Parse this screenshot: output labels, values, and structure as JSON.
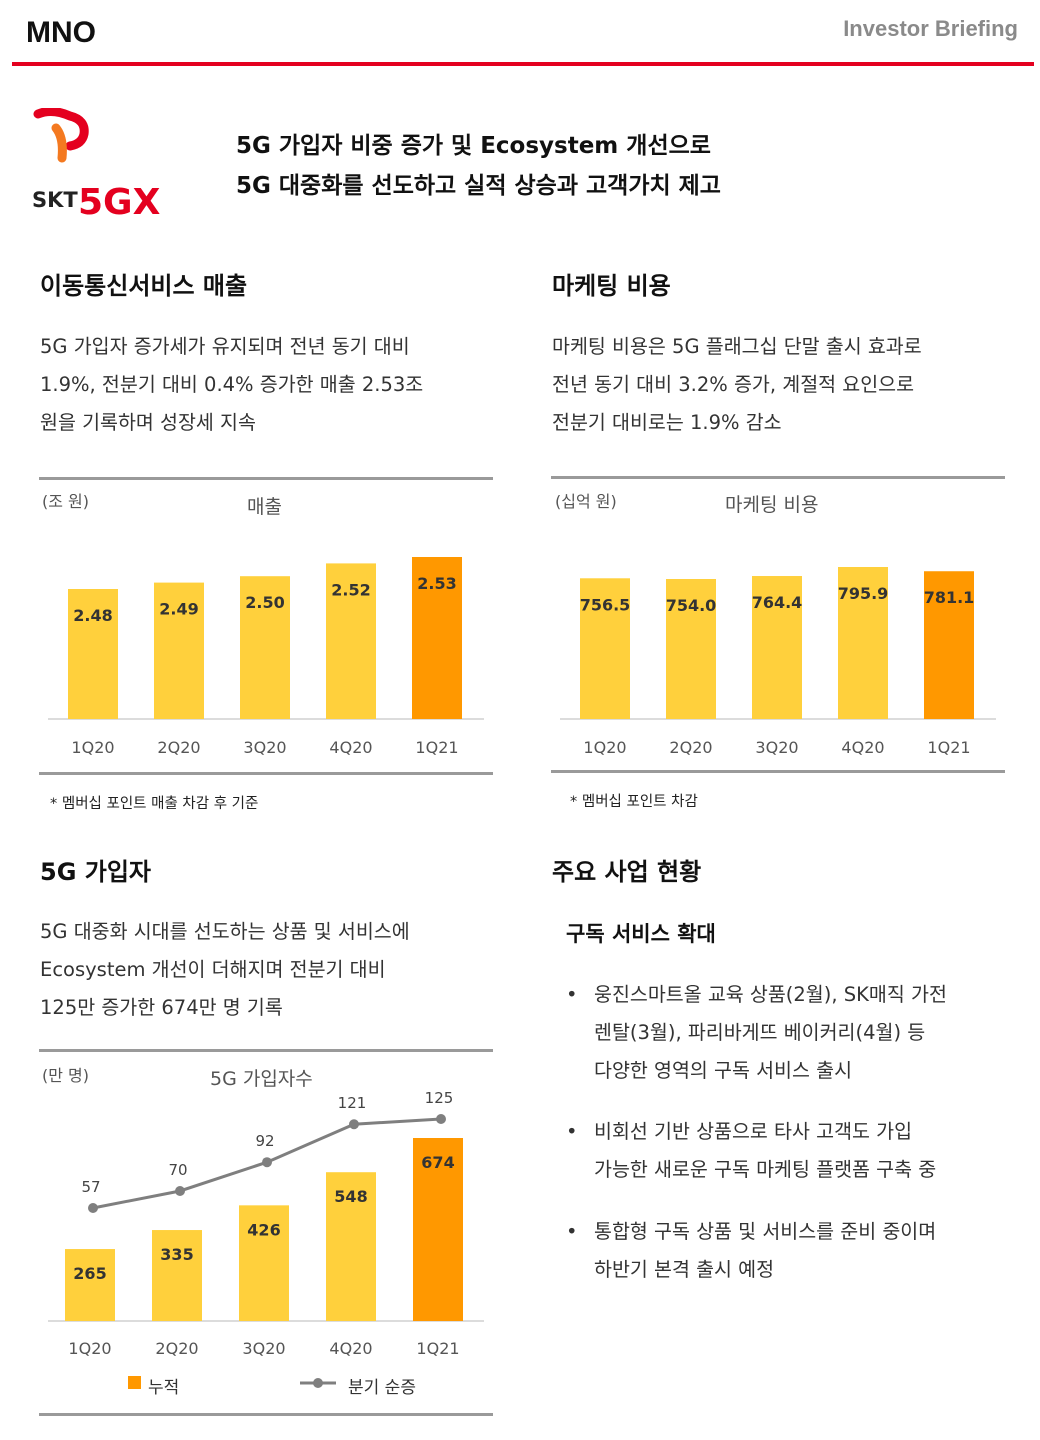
{
  "header": {
    "title": "MNO",
    "right": "Investor Briefing"
  },
  "logo": {
    "brand": "SKT",
    "product": "5GX"
  },
  "headline": {
    "line1": "5G 가입자 비중 증가 및 Ecosystem 개선으로",
    "line2": "5G 대중화를 선도하고 실적 상승과 고객가치 제고"
  },
  "colors": {
    "accent_red": "#e4001f",
    "bar_yellow": "#ffd03c",
    "bar_orange": "#ff9800",
    "line_gray": "#7f7f7f"
  },
  "revenue": {
    "title": "이동통신서비스 매출",
    "desc": [
      "5G 가입자 증가세가 유지되며 전년 동기 대비",
      "1.9%, 전분기 대비 0.4% 증가한 매출 2.53조",
      "원을 기록하며 성장세 지속"
    ],
    "unit": "(조 원)",
    "chart_title": "매출",
    "note": "* 멤버십 포인트 매출 차감 후 기준"
  },
  "marketing": {
    "title": "마케팅 비용",
    "desc": [
      "마케팅 비용은 5G 플래그십 단말 출시 효과로",
      "전년 동기 대비 3.2% 증가, 계절적 요인으로",
      "전분기 대비로는 1.9% 감소"
    ],
    "unit": "(십억 원)",
    "chart_title": "마케팅 비용",
    "note": "* 멤버십 포인트 차감"
  },
  "subscribers": {
    "title": "5G 가입자",
    "desc": [
      "5G 대중화 시대를 선도하는 상품 및 서비스에",
      "Ecosystem 개선이 더해지며 전분기 대비",
      "125만 증가한 674만 명 기록"
    ],
    "unit": "(만 명)",
    "chart_title": "5G 가입자수",
    "legend_bar": "누적",
    "legend_line": "분기 순증"
  },
  "business": {
    "title": "주요 사업 현황",
    "subtitle": "구독 서비스 확대",
    "bullets": [
      [
        "웅진스마트올 교육 상품(2월), SK매직 가전",
        "렌탈(3월), 파리바게뜨 베이커리(4월) 등",
        "다양한 영역의 구독 서비스 출시"
      ],
      [
        "비회선 기반 상품으로 타사 고객도 가입",
        "가능한 새로운 구독 마케팅 플랫폼 구축 중"
      ],
      [
        "통합형 구독 상품 및 서비스를 준비 중이며",
        "하반기 본격 출시 예정"
      ]
    ]
  },
  "chart_data": [
    {
      "type": "bar",
      "title": "매출",
      "ylabel": "(조 원)",
      "categories": [
        "1Q20",
        "2Q20",
        "3Q20",
        "4Q20",
        "1Q21"
      ],
      "values": [
        2.48,
        2.49,
        2.5,
        2.52,
        2.53
      ],
      "labels": [
        "2.48",
        "2.49",
        "2.50",
        "2.52",
        "2.53"
      ],
      "highlight_last": true
    },
    {
      "type": "bar",
      "title": "마케팅 비용",
      "ylabel": "(십억 원)",
      "categories": [
        "1Q20",
        "2Q20",
        "3Q20",
        "4Q20",
        "1Q21"
      ],
      "values": [
        756.5,
        754.0,
        764.4,
        795.9,
        781.1
      ],
      "labels": [
        "756.5",
        "754.0",
        "764.4",
        "795.9",
        "781.1"
      ],
      "highlight_last": true
    },
    {
      "type": "bar",
      "title": "5G 가입자수",
      "ylabel": "(만 명)",
      "categories": [
        "1Q20",
        "2Q20",
        "3Q20",
        "4Q20",
        "1Q21"
      ],
      "series": [
        {
          "name": "누적",
          "type": "bar",
          "values": [
            265,
            335,
            426,
            548,
            674
          ]
        },
        {
          "name": "분기 순증",
          "type": "line",
          "values": [
            57,
            70,
            92,
            121,
            125
          ]
        }
      ],
      "legend": "bottom",
      "highlight_last": true
    }
  ]
}
